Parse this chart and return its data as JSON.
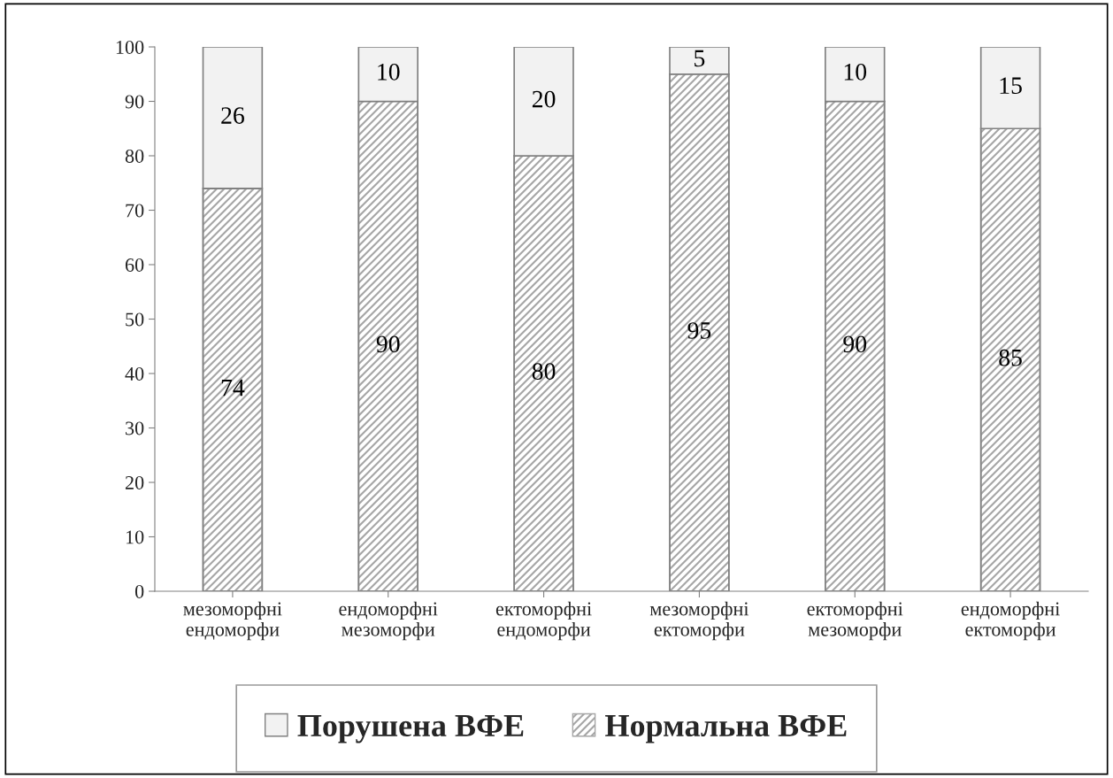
{
  "chart_data": {
    "type": "bar",
    "stacked": true,
    "categories": [
      "мезоморфні\nендоморфи",
      "ендоморфні\nмезоморфи",
      "ектоморфні\nендоморфи",
      "мезоморфні\nектоморфи",
      "ектоморфні\nмезоморфи",
      "ендоморфні\nектоморфи"
    ],
    "series": [
      {
        "name": "Нормальна ВФЕ",
        "color": "#a6a6a6",
        "values": [
          74,
          90,
          80,
          95,
          90,
          85
        ]
      },
      {
        "name": "Порушена ВФЕ",
        "color": "#f2f2f2",
        "values": [
          26,
          10,
          20,
          5,
          10,
          15
        ]
      }
    ],
    "ylim": [
      0,
      100
    ],
    "yticks": [
      0,
      10,
      20,
      30,
      40,
      50,
      60,
      70,
      80,
      90,
      100
    ],
    "data_labels": true,
    "grid": false,
    "legend": "bottom"
  }
}
